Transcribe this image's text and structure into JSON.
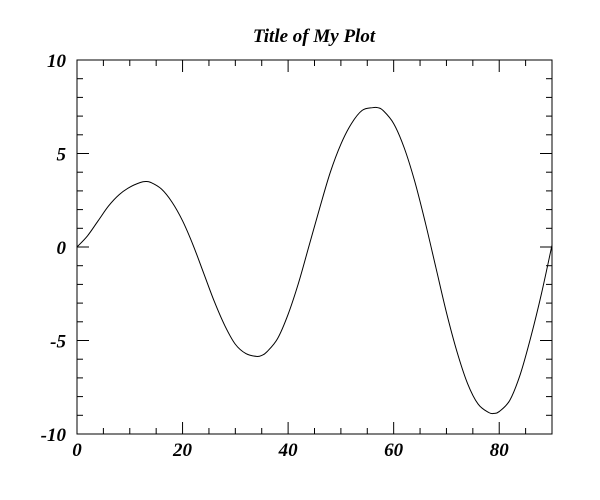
{
  "chart_data": {
    "type": "line",
    "title": "Title of My Plot",
    "xlabel": "",
    "ylabel": "",
    "xlim": [
      0,
      90
    ],
    "ylim": [
      -10,
      10
    ],
    "x_ticks": [
      0,
      20,
      40,
      60,
      80
    ],
    "y_ticks": [
      -10,
      -5,
      0,
      5,
      10
    ],
    "x_tick_labels": [
      "0",
      "20",
      "40",
      "60",
      "80"
    ],
    "y_tick_labels": [
      "-10",
      "-5",
      "0",
      "5",
      "10"
    ],
    "grid": false,
    "line_color": "#000000",
    "series": [
      {
        "x": [
          0,
          2,
          4,
          6,
          8,
          10,
          12,
          13,
          14,
          16,
          18,
          20,
          22,
          24,
          26,
          28,
          30,
          32,
          34,
          35,
          36,
          38,
          40,
          42,
          44,
          46,
          48,
          50,
          52,
          54,
          56,
          57,
          58,
          60,
          62,
          64,
          66,
          68,
          70,
          72,
          74,
          76,
          78,
          79,
          80,
          82,
          84,
          86,
          88,
          90
        ],
        "y": [
          0.0,
          0.6,
          1.4,
          2.2,
          2.8,
          3.2,
          3.45,
          3.5,
          3.45,
          3.1,
          2.4,
          1.4,
          0.1,
          -1.4,
          -2.9,
          -4.2,
          -5.2,
          -5.7,
          -5.85,
          -5.8,
          -5.6,
          -4.9,
          -3.6,
          -1.9,
          0.1,
          2.1,
          4.0,
          5.5,
          6.6,
          7.3,
          7.45,
          7.45,
          7.3,
          6.6,
          5.3,
          3.5,
          1.3,
          -1.1,
          -3.5,
          -5.6,
          -7.3,
          -8.4,
          -8.85,
          -8.9,
          -8.8,
          -8.2,
          -6.8,
          -4.8,
          -2.5,
          0.1
        ]
      }
    ]
  }
}
